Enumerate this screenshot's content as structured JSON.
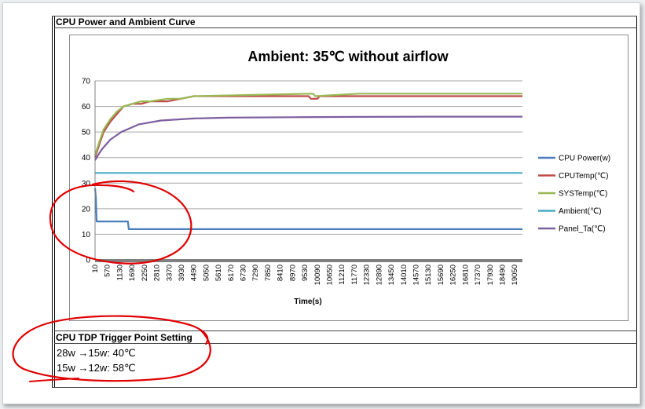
{
  "section1": {
    "title": "CPU Power and Ambient Curve"
  },
  "section2": {
    "title": "CPU TDP Trigger Point Setting",
    "lines": [
      "28w →15w: 40℃",
      "15w →12w: 58℃"
    ]
  },
  "colors": {
    "cpu_power": "#4a7ebb",
    "cpu_temp": "#be4b48",
    "sys_temp": "#98b954",
    "ambient": "#4bacc6",
    "panel_ta": "#7d5fa0",
    "annotation": "#e00000"
  },
  "chart_data": {
    "type": "line",
    "title": "Ambient: 35℃ without airflow",
    "xlabel": "Time(s)",
    "ylabel": "",
    "ylim": [
      0,
      70
    ],
    "yticks": [
      0,
      10,
      20,
      30,
      40,
      50,
      60,
      70
    ],
    "xlim": [
      10,
      19400
    ],
    "xticks": [
      10,
      570,
      1130,
      1690,
      2250,
      2810,
      3370,
      3930,
      4490,
      5050,
      5610,
      6170,
      6730,
      7290,
      7850,
      8410,
      8970,
      9530,
      10090,
      10650,
      11210,
      11770,
      12330,
      12890,
      13450,
      14010,
      14570,
      15130,
      15690,
      16250,
      16810,
      17370,
      17930,
      18490,
      19050
    ],
    "legend_position": "right",
    "series": [
      {
        "name": "CPU Power(w)",
        "x": [
          10,
          50,
          80,
          120,
          1500,
          1540,
          19400
        ],
        "y": [
          28,
          24,
          15,
          15,
          15,
          12,
          12
        ]
      },
      {
        "name": "CPUTemp(℃)",
        "x": [
          10,
          200,
          400,
          700,
          1000,
          1300,
          1700,
          2100,
          2500,
          3300,
          3900,
          4500,
          9700,
          9800,
          10100,
          10200,
          19400
        ],
        "y": [
          40,
          45,
          50,
          54,
          57,
          60,
          61,
          61,
          62,
          62,
          63,
          64,
          64,
          63,
          63,
          64,
          64
        ]
      },
      {
        "name": "SYSTemp(℃)",
        "x": [
          10,
          200,
          400,
          700,
          1000,
          1300,
          1700,
          2100,
          2500,
          3300,
          3900,
          4500,
          9900,
          10000,
          12000,
          19400
        ],
        "y": [
          41,
          46,
          51,
          55,
          58,
          60,
          61,
          62,
          62,
          63,
          63,
          64,
          65,
          64,
          65,
          65
        ]
      },
      {
        "name": "Ambient(℃)",
        "x": [
          10,
          19400
        ],
        "y": [
          34,
          34
        ]
      },
      {
        "name": "Panel_Ta(℃)",
        "x": [
          10,
          300,
          700,
          1200,
          2000,
          3000,
          4500,
          6000,
          9000,
          12000,
          15000,
          19400
        ],
        "y": [
          39,
          43,
          47,
          50,
          53,
          54.5,
          55.3,
          55.6,
          55.8,
          55.9,
          56,
          56
        ]
      }
    ]
  }
}
